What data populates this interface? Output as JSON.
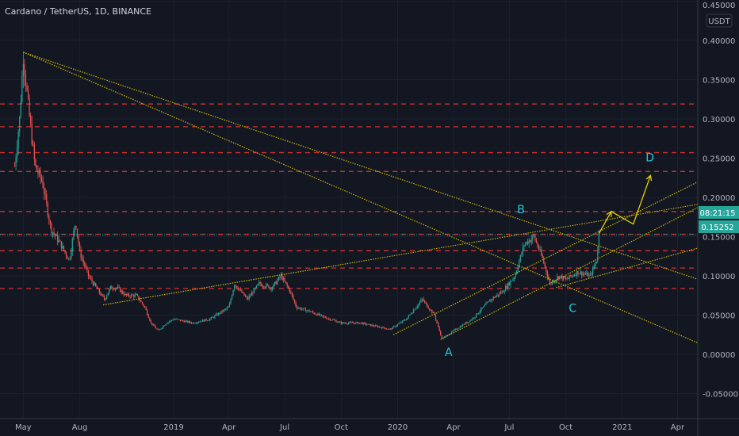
{
  "header": {
    "title": "Cardano / TetherUS, 1D, BINANCE"
  },
  "price_axis": {
    "currency": "USDT",
    "ticks": [
      "0.45000",
      "0.40000",
      "0.35000",
      "0.30000",
      "0.25000",
      "0.20000",
      "0.15000",
      "0.10000",
      "0.05000",
      "0.00000",
      "-0.05000"
    ]
  },
  "time_axis": {
    "ticks": [
      {
        "label": "May",
        "date": "2018-05-01"
      },
      {
        "label": "Aug",
        "date": "2018-08-01"
      },
      {
        "label": "2019",
        "date": "2019-01-01"
      },
      {
        "label": "Apr",
        "date": "2019-04-01"
      },
      {
        "label": "Jul",
        "date": "2019-07-01"
      },
      {
        "label": "Oct",
        "date": "2019-10-01"
      },
      {
        "label": "2020",
        "date": "2020-01-01"
      },
      {
        "label": "Apr",
        "date": "2020-04-01"
      },
      {
        "label": "Jul",
        "date": "2020-07-01"
      },
      {
        "label": "Oct",
        "date": "2020-10-01"
      },
      {
        "label": "2021",
        "date": "2021-01-01"
      },
      {
        "label": "Apr",
        "date": "2021-04-01"
      }
    ]
  },
  "last_price": {
    "value": "0.15252",
    "countdown": "08:21:15",
    "color": "#26a69a"
  },
  "colors": {
    "background": "#131722",
    "up": "#26a69a",
    "down": "#ef5350",
    "levels": "#d32f2f",
    "trendlines": "#c8b400",
    "annotations": "#26c6da",
    "arrows": "#e6d200"
  },
  "chart_data": {
    "type": "candlestick",
    "ylim": [
      -0.06,
      0.455
    ],
    "xlim": [
      "2018-04-12",
      "2021-07-10"
    ],
    "grid": true,
    "close_points": [
      [
        "2018-04-17",
        0.24
      ],
      [
        "2018-04-25",
        0.3
      ],
      [
        "2018-05-01",
        0.38
      ],
      [
        "2018-05-10",
        0.31
      ],
      [
        "2018-05-20",
        0.24
      ],
      [
        "2018-06-01",
        0.22
      ],
      [
        "2018-06-15",
        0.16
      ],
      [
        "2018-07-01",
        0.14
      ],
      [
        "2018-07-15",
        0.12
      ],
      [
        "2018-07-25",
        0.17
      ],
      [
        "2018-08-01",
        0.13
      ],
      [
        "2018-08-15",
        0.1
      ],
      [
        "2018-09-01",
        0.08
      ],
      [
        "2018-09-10",
        0.07
      ],
      [
        "2018-09-20",
        0.085
      ],
      [
        "2018-10-01",
        0.085
      ],
      [
        "2018-10-15",
        0.075
      ],
      [
        "2018-11-01",
        0.075
      ],
      [
        "2018-11-15",
        0.06
      ],
      [
        "2018-11-25",
        0.04
      ],
      [
        "2018-12-07",
        0.03
      ],
      [
        "2018-12-20",
        0.04
      ],
      [
        "2019-01-01",
        0.045
      ],
      [
        "2019-02-01",
        0.04
      ],
      [
        "2019-03-01",
        0.045
      ],
      [
        "2019-04-01",
        0.06
      ],
      [
        "2019-04-10",
        0.09
      ],
      [
        "2019-05-01",
        0.07
      ],
      [
        "2019-05-20",
        0.09
      ],
      [
        "2019-06-10",
        0.085
      ],
      [
        "2019-06-25",
        0.1
      ],
      [
        "2019-07-10",
        0.08
      ],
      [
        "2019-07-20",
        0.06
      ],
      [
        "2019-08-10",
        0.055
      ],
      [
        "2019-09-01",
        0.048
      ],
      [
        "2019-10-01",
        0.04
      ],
      [
        "2019-11-01",
        0.04
      ],
      [
        "2019-12-01",
        0.035
      ],
      [
        "2019-12-20",
        0.032
      ],
      [
        "2020-01-15",
        0.045
      ],
      [
        "2020-02-10",
        0.07
      ],
      [
        "2020-03-01",
        0.05
      ],
      [
        "2020-03-13",
        0.02
      ],
      [
        "2020-04-01",
        0.03
      ],
      [
        "2020-05-01",
        0.045
      ],
      [
        "2020-06-01",
        0.07
      ],
      [
        "2020-06-20",
        0.08
      ],
      [
        "2020-07-10",
        0.1
      ],
      [
        "2020-07-25",
        0.14
      ],
      [
        "2020-08-10",
        0.15
      ],
      [
        "2020-08-25",
        0.12
      ],
      [
        "2020-09-05",
        0.09
      ],
      [
        "2020-09-20",
        0.1
      ],
      [
        "2020-10-01",
        0.095
      ],
      [
        "2020-10-20",
        0.105
      ],
      [
        "2020-11-10",
        0.1
      ],
      [
        "2020-11-20",
        0.12
      ],
      [
        "2020-11-24",
        0.1525
      ]
    ],
    "horizontal_levels": [
      0.319,
      0.29,
      0.257,
      0.233,
      0.182,
      0.153,
      0.132,
      0.11,
      0.084
    ],
    "trendlines": [
      [
        [
          "2018-05-01",
          0.385
        ],
        [
          "2021-07-10",
          0.078
        ]
      ],
      [
        [
          "2018-05-01",
          0.385
        ],
        [
          "2021-07-10",
          -0.008
        ]
      ],
      [
        [
          "2018-09-08",
          0.063
        ],
        [
          "2021-07-10",
          0.2
        ]
      ],
      [
        [
          "2019-12-25",
          0.025
        ],
        [
          "2021-07-10",
          0.246
        ]
      ],
      [
        [
          "2020-03-11",
          0.019
        ],
        [
          "2021-07-10",
          0.214
        ]
      ],
      [
        [
          "2020-09-15",
          0.085
        ],
        [
          "2021-07-10",
          0.15
        ]
      ]
    ],
    "projection_arrow": [
      [
        "2020-11-24",
        0.154
      ],
      [
        "2020-12-14",
        0.182
      ],
      [
        "2021-01-19",
        0.166
      ],
      [
        "2021-02-16",
        0.228
      ]
    ],
    "annotations": [
      {
        "label": "A",
        "date": "2020-03-24",
        "value": -0.002
      },
      {
        "label": "B",
        "date": "2020-07-20",
        "value": 0.18
      },
      {
        "label": "C",
        "date": "2020-10-12",
        "value": 0.054
      },
      {
        "label": "D",
        "date": "2021-02-15",
        "value": 0.246
      }
    ]
  }
}
